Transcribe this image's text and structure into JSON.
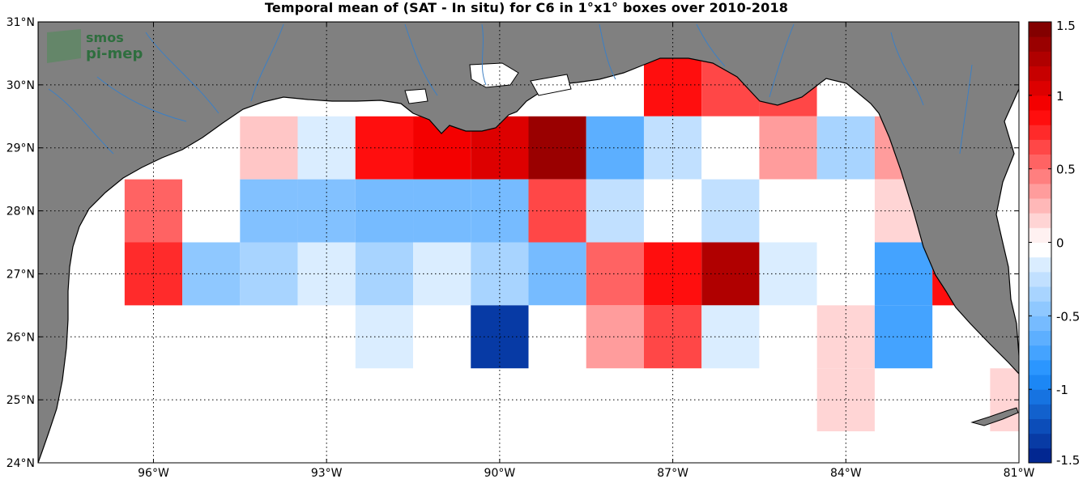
{
  "chart_data": {
    "type": "heatmap",
    "title": "Temporal mean of (SAT - In situ) for C6 in 1°x1° boxes over 2010-2018",
    "xlim": [
      -98.0,
      -81.0
    ],
    "ylim": [
      24.0,
      31.0
    ],
    "x_ticks": [
      -96,
      -93,
      -90,
      -87,
      -84,
      -81
    ],
    "x_tick_labels": [
      "96°W",
      "93°W",
      "90°W",
      "87°W",
      "84°W",
      "81°W"
    ],
    "y_ticks": [
      24,
      25,
      26,
      27,
      28,
      29,
      30,
      31
    ],
    "y_tick_labels": [
      "24°N",
      "25°N",
      "26°N",
      "27°N",
      "28°N",
      "29°N",
      "30°N",
      "31°N"
    ],
    "grid": true,
    "grid_style": "dotted",
    "colorbar": {
      "range": [
        -1.5,
        1.5
      ],
      "step": 0.1,
      "ticks": [
        1.5,
        1,
        0.5,
        0,
        -0.5,
        -1,
        -1.5
      ],
      "tick_labels": [
        "1.5",
        "1",
        "0.5",
        "0",
        "-0.5",
        "-1",
        "-1.5"
      ],
      "placement": "right"
    },
    "cells": [
      {
        "lon": -96,
        "lat": 28,
        "value": 0.55
      },
      {
        "lon": -96,
        "lat": 27,
        "value": 0.75
      },
      {
        "lon": -95,
        "lat": 28,
        "value": 0.0
      },
      {
        "lon": -95,
        "lat": 27,
        "value": -0.45
      },
      {
        "lon": -94,
        "lat": 29,
        "value": 0.2
      },
      {
        "lon": -94,
        "lat": 28,
        "value": -0.5
      },
      {
        "lon": -94,
        "lat": 27,
        "value": -0.35
      },
      {
        "lon": -93,
        "lat": 29,
        "value": -0.15
      },
      {
        "lon": -93,
        "lat": 28,
        "value": -0.5
      },
      {
        "lon": -93,
        "lat": 27,
        "value": -0.15
      },
      {
        "lon": -92,
        "lat": 29,
        "value": 0.85
      },
      {
        "lon": -92,
        "lat": 28,
        "value": -0.55
      },
      {
        "lon": -92,
        "lat": 27,
        "value": -0.35
      },
      {
        "lon": -92,
        "lat": 26,
        "value": -0.15
      },
      {
        "lon": -91,
        "lat": 29,
        "value": 0.95
      },
      {
        "lon": -91,
        "lat": 28,
        "value": -0.55
      },
      {
        "lon": -91,
        "lat": 27,
        "value": -0.15
      },
      {
        "lon": -91,
        "lat": 26,
        "value": 0.0
      },
      {
        "lon": -90,
        "lat": 29,
        "value": 1.05
      },
      {
        "lon": -90,
        "lat": 28,
        "value": -0.55
      },
      {
        "lon": -90,
        "lat": 27,
        "value": -0.35
      },
      {
        "lon": -90,
        "lat": 26,
        "value": -1.35
      },
      {
        "lon": -89,
        "lat": 29,
        "value": 1.35
      },
      {
        "lon": -89,
        "lat": 28,
        "value": 0.65
      },
      {
        "lon": -89,
        "lat": 27,
        "value": -0.55
      },
      {
        "lon": -89,
        "lat": 26,
        "value": 0.0
      },
      {
        "lon": -88,
        "lat": 29,
        "value": -0.65
      },
      {
        "lon": -88,
        "lat": 28,
        "value": -0.25
      },
      {
        "lon": -88,
        "lat": 27,
        "value": 0.55
      },
      {
        "lon": -88,
        "lat": 26,
        "value": 0.35
      },
      {
        "lon": -87,
        "lat": 30,
        "value": 0.85
      },
      {
        "lon": -87,
        "lat": 29,
        "value": -0.25
      },
      {
        "lon": -87,
        "lat": 28,
        "value": 0.0
      },
      {
        "lon": -87,
        "lat": 27,
        "value": 0.85
      },
      {
        "lon": -87,
        "lat": 26,
        "value": 0.65
      },
      {
        "lon": -86,
        "lat": 30,
        "value": 0.65
      },
      {
        "lon": -86,
        "lat": 29,
        "value": 0.0
      },
      {
        "lon": -86,
        "lat": 28,
        "value": -0.25
      },
      {
        "lon": -86,
        "lat": 27,
        "value": 1.25
      },
      {
        "lon": -86,
        "lat": 26,
        "value": -0.15
      },
      {
        "lon": -85,
        "lat": 30,
        "value": 0.65
      },
      {
        "lon": -85,
        "lat": 29,
        "value": 0.35
      },
      {
        "lon": -85,
        "lat": 28,
        "value": 0.0
      },
      {
        "lon": -85,
        "lat": 27,
        "value": -0.15
      },
      {
        "lon": -85,
        "lat": 26,
        "value": 0.0
      },
      {
        "lon": -84,
        "lat": 30,
        "value": 0.0
      },
      {
        "lon": -84,
        "lat": 29,
        "value": -0.35
      },
      {
        "lon": -84,
        "lat": 28,
        "value": 0.0
      },
      {
        "lon": -84,
        "lat": 27,
        "value": 0.0
      },
      {
        "lon": -84,
        "lat": 26,
        "value": 0.15
      },
      {
        "lon": -84,
        "lat": 25,
        "value": 0.15
      },
      {
        "lon": -83,
        "lat": 29,
        "value": 0.35
      },
      {
        "lon": -83,
        "lat": 28,
        "value": 0.15
      },
      {
        "lon": -83,
        "lat": 27,
        "value": -0.75
      },
      {
        "lon": -83,
        "lat": 26,
        "value": -0.75
      },
      {
        "lon": -82,
        "lat": 27,
        "value": 0.85
      },
      {
        "lon": -81,
        "lat": 25,
        "value": 0.15
      }
    ]
  },
  "colors": {
    "land": "#808080",
    "coast": "#000000",
    "river": "#3c7fc4",
    "grid": "#000000"
  },
  "logo": {
    "line1": "smos",
    "line2": "pi-mep"
  }
}
